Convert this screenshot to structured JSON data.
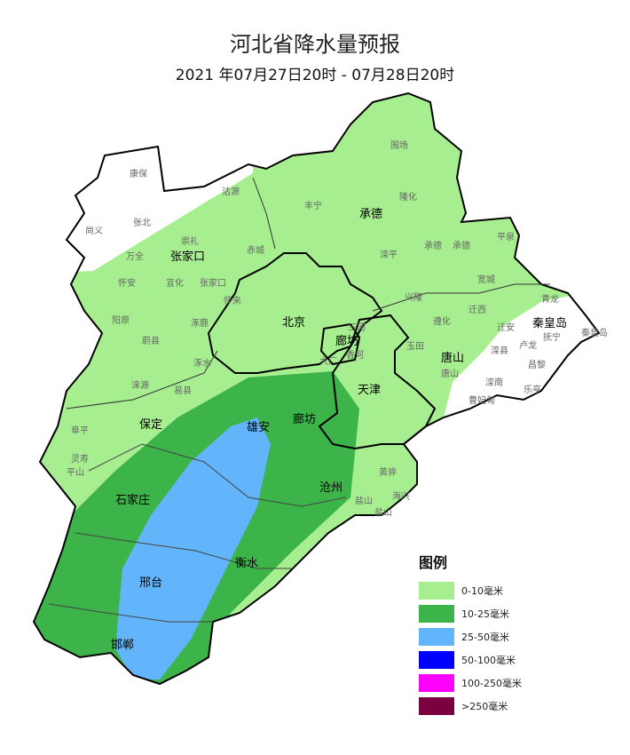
{
  "title": "河北省降水量预报",
  "subtitle": "2021 年07月27日20时 - 07月28日20时",
  "legend": {
    "title": "图例",
    "items": [
      {
        "label": "0-10毫米",
        "color": "#a6ee8f"
      },
      {
        "label": "10-25毫米",
        "color": "#3db44a"
      },
      {
        "label": "25-50毫米",
        "color": "#62b5fa"
      },
      {
        "label": "50-100毫米",
        "color": "#0000fe"
      },
      {
        "label": "100-250毫米",
        "color": "#fe00fe"
      },
      {
        "label": ">250毫米",
        "color": "#7b0040"
      }
    ]
  },
  "map": {
    "cities": [
      "张家口",
      "承德",
      "北京",
      "廊坊",
      "唐山",
      "秦皇岛",
      "天津",
      "保定",
      "雄安",
      "廊坊",
      "沧州",
      "石家庄",
      "衡水",
      "邢台",
      "邯郸"
    ],
    "counties": [
      "康保",
      "张北",
      "尚义",
      "沽源",
      "丰宁",
      "围场",
      "隆化",
      "崇礼",
      "万全",
      "赤城",
      "怀安",
      "宣化",
      "张家口",
      "怀来",
      "阳原",
      "涿鹿",
      "蔚县",
      "涿水",
      "平泉",
      "承德",
      "承德",
      "滦平",
      "宽城",
      "兴隆",
      "青龙",
      "迁西",
      "遵化",
      "迁安",
      "抚宁",
      "秦皇岛",
      "玉田",
      "唐山",
      "滦县",
      "卢龙",
      "昌黎",
      "滦南",
      "乐亭",
      "曹妃甸",
      "三河",
      "大厂",
      "香河",
      "涞源",
      "易县",
      "阜平",
      "灵寿",
      "平山",
      "黄骅",
      "海兴",
      "盐山",
      "盐山"
    ]
  }
}
